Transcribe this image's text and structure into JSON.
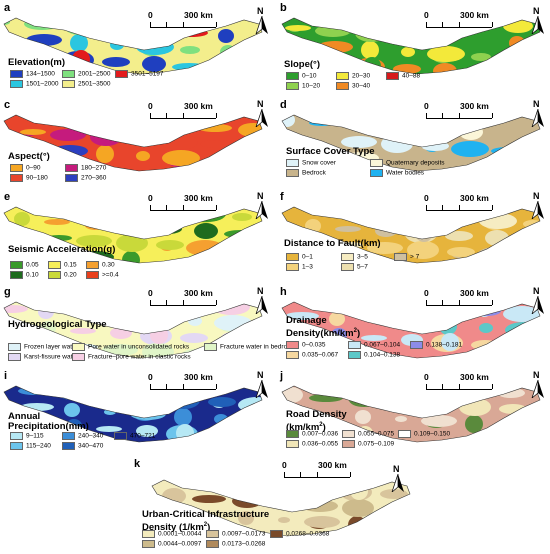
{
  "scale_label_zero": "0",
  "scale_label_km": "300 km",
  "north_label": "N",
  "panels": [
    {
      "id": "a",
      "label": "a",
      "title": "Elevation(m)",
      "legend": [
        {
          "text": "134–1500",
          "color": "#1f3fbf"
        },
        {
          "text": "2001–2500",
          "color": "#7fe07f"
        },
        {
          "text": "3501–5197",
          "color": "#e31a1c"
        },
        {
          "text": "1501–2000",
          "color": "#2bc6e0"
        },
        {
          "text": "2501–3500",
          "color": "#f3ee8c"
        }
      ]
    },
    {
      "id": "b",
      "label": "b",
      "title": "Slope(°)",
      "legend": [
        {
          "text": "0–10",
          "color": "#2e9e2e"
        },
        {
          "text": "20–30",
          "color": "#f3e93a"
        },
        {
          "text": "40–88",
          "color": "#d7191c"
        },
        {
          "text": "10–20",
          "color": "#8fd14f"
        },
        {
          "text": "30–40",
          "color": "#f08a24"
        }
      ]
    },
    {
      "id": "c",
      "label": "c",
      "title": "Aspect(°)",
      "legend": [
        {
          "text": "0–90",
          "color": "#f5a623"
        },
        {
          "text": "180–270",
          "color": "#c51b7d"
        },
        {
          "text": "90–180",
          "color": "#e8452c"
        },
        {
          "text": "270–360",
          "color": "#2c3fbf"
        }
      ]
    },
    {
      "id": "d",
      "label": "d",
      "title": "Surface Cover Type",
      "legend": [
        {
          "text": "Snow cover",
          "color": "#dff2f8"
        },
        {
          "text": "Quaternary deposits",
          "color": "#fbf6d8"
        },
        {
          "text": "Bedrock",
          "color": "#c8b48c"
        },
        {
          "text": "Water bodies",
          "color": "#1fb2f0"
        }
      ]
    },
    {
      "id": "e",
      "label": "e",
      "title": "Seismic Acceleration(g)",
      "legend": [
        {
          "text": "0.05",
          "color": "#3a9a2b"
        },
        {
          "text": "0.15",
          "color": "#f6ef5a"
        },
        {
          "text": "0.30",
          "color": "#f5a030"
        },
        {
          "text": "0.10",
          "color": "#1e6b1e"
        },
        {
          "text": "0.20",
          "color": "#c9d93a"
        },
        {
          "text": ">=0.4",
          "color": "#e8401c"
        }
      ]
    },
    {
      "id": "f",
      "label": "f",
      "title": "Distance to Fault(km)",
      "legend": [
        {
          "text": "0–1",
          "color": "#e6b43c"
        },
        {
          "text": "3–5",
          "color": "#f6ecc2"
        },
        {
          "text": "> 7",
          "color": "#cfc0a0"
        },
        {
          "text": "1–3",
          "color": "#f3d27c"
        },
        {
          "text": "5–7",
          "color": "#ede0b0"
        }
      ]
    },
    {
      "id": "g",
      "label": "g",
      "title": "Hydrogeological Type",
      "legend": [
        {
          "text": "Frozen layer water",
          "color": "#dff2f8"
        },
        {
          "text": "Pore water in unconsolidated rocks",
          "color": "#f8f8c0"
        },
        {
          "text": "Fracture water in bedrock",
          "color": "#e0f5c8"
        },
        {
          "text": "Karst-fissure water",
          "color": "#e3d8f4"
        },
        {
          "text": "Fracture–pore water in clastic rocks",
          "color": "#f6cfe4"
        }
      ]
    },
    {
      "id": "h",
      "label": "h",
      "title": "Drainage",
      "title2": "Density(km/km",
      "title2_sup": "2",
      "title2_end": ")",
      "legend": [
        {
          "text": "0–0.035",
          "color": "#f08a8a"
        },
        {
          "text": "0.067–0.104",
          "color": "#c9e8f6"
        },
        {
          "text": "0.138–0.181",
          "color": "#8c8ce8"
        },
        {
          "text": "0.035–0.067",
          "color": "#f6d8a0"
        },
        {
          "text": "0.104–0.138",
          "color": "#5cc8c8"
        }
      ]
    },
    {
      "id": "i",
      "label": "i",
      "title": "Annual",
      "title2": "Precipitation(mm)",
      "legend": [
        {
          "text": "9–115",
          "color": "#b6e8f4"
        },
        {
          "text": "240–340",
          "color": "#3c8ed8"
        },
        {
          "text": "470–721",
          "color": "#1a2a8c"
        },
        {
          "text": "115–240",
          "color": "#6cc4ec"
        },
        {
          "text": "340–470",
          "color": "#2060b8"
        }
      ]
    },
    {
      "id": "j",
      "label": "j",
      "title": "Road Density",
      "title2": "(km/km",
      "title2_sup": "2",
      "title2_end": ")",
      "legend": [
        {
          "text": "0.007–0.036",
          "color": "#5a8a3c"
        },
        {
          "text": "0.055–0.075",
          "color": "#f0e0d0"
        },
        {
          "text": "0.109–0.150",
          "color": "#ffffff"
        },
        {
          "text": "0.036–0.055",
          "color": "#f1e6b8"
        },
        {
          "text": "0.075–0.109",
          "color": "#d9a896"
        }
      ]
    },
    {
      "id": "k",
      "label": "k",
      "title": "Urban-Critical Infrastructure",
      "title2": "Density (1/km",
      "title2_sup": "2",
      "title2_end": ")",
      "legend": [
        {
          "text": "0.0001–0.0044",
          "color": "#f3ebbd"
        },
        {
          "text": "0.0097–0.0173",
          "color": "#d8c49c"
        },
        {
          "text": "0.0268–0.0368",
          "color": "#7a4a2a"
        },
        {
          "text": "0.0044–0.0097",
          "color": "#cdbb8c"
        },
        {
          "text": "0.0173–0.0268",
          "color": "#b08a5c"
        }
      ]
    }
  ]
}
